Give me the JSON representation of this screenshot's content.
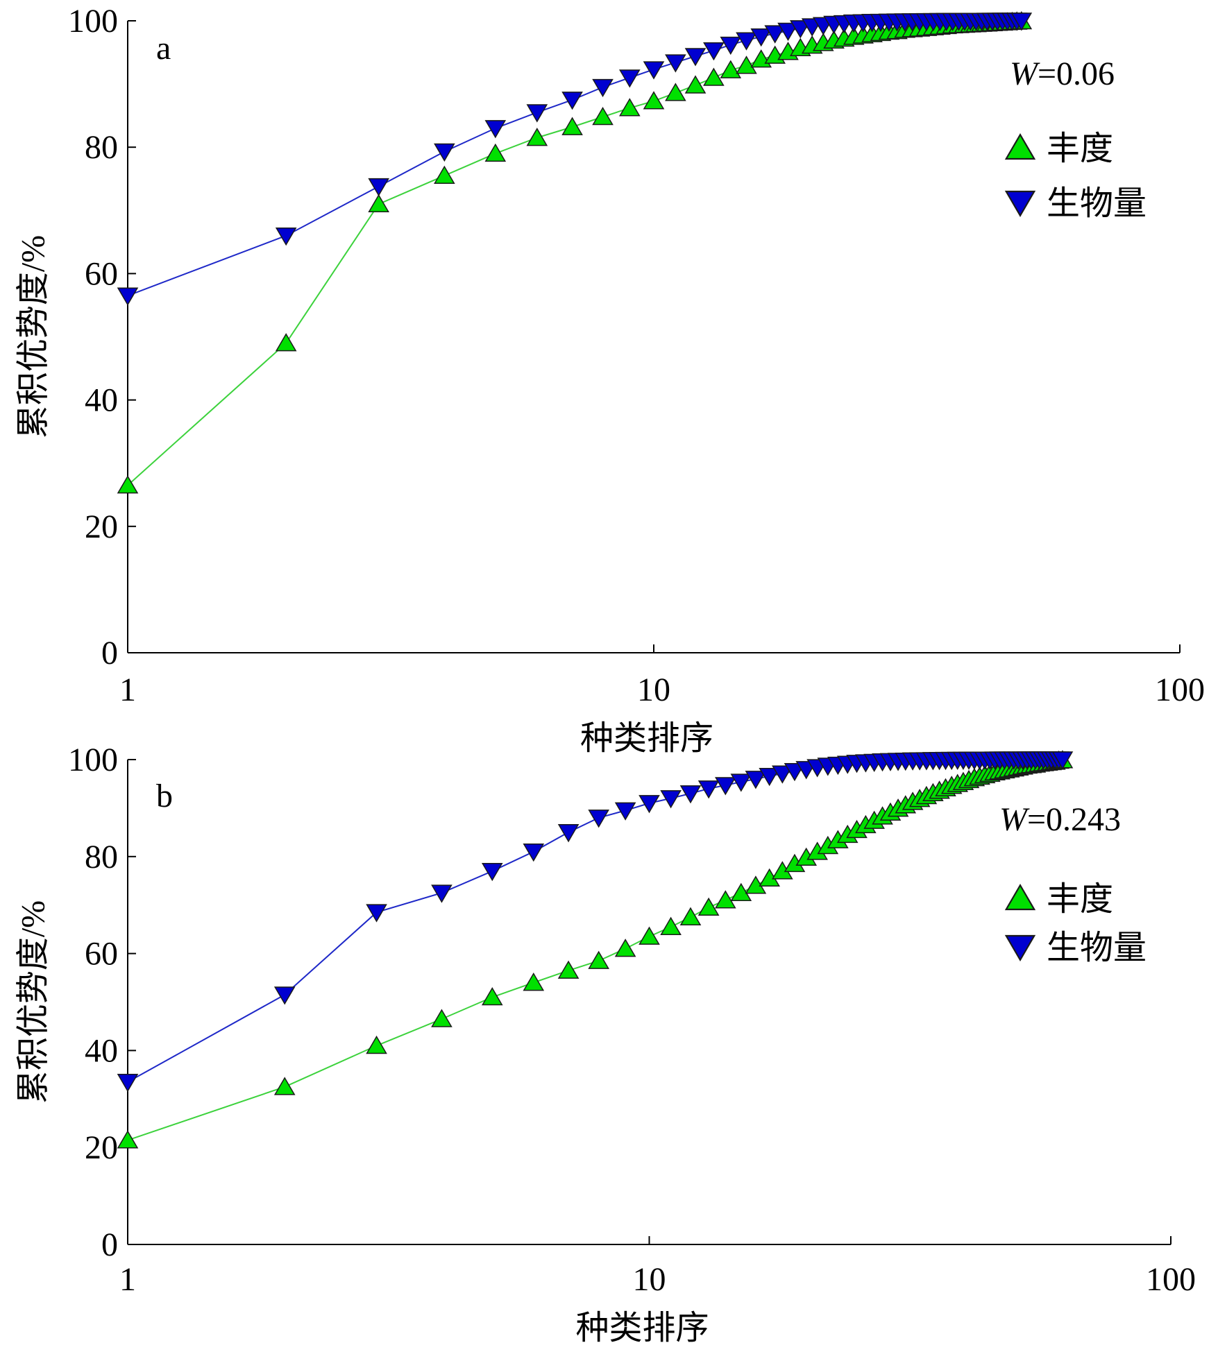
{
  "chart_data": [
    {
      "type": "line",
      "panel_label": "a",
      "annotation": {
        "prefix": "W",
        "text": "=0.06"
      },
      "xlabel": "种类排序",
      "ylabel": "累积优势度/%",
      "xscale": "log",
      "xlim": [
        1,
        100
      ],
      "ylim": [
        0,
        100
      ],
      "xticks": [
        "1",
        "10",
        "100"
      ],
      "yticks": [
        "0",
        "20",
        "40",
        "60",
        "80",
        "100"
      ],
      "legend_position": "top-right",
      "legend": [
        "丰度",
        "生物量"
      ],
      "series": [
        {
          "name": "丰度",
          "color": "#00e000",
          "line_color": "#3cd23c",
          "marker": "triangle-up",
          "x": [
            1,
            2,
            3,
            4,
            5,
            6,
            7,
            8,
            9,
            10,
            11,
            12,
            13,
            14,
            15,
            16,
            17,
            18,
            19,
            20,
            21,
            22,
            23,
            24,
            25,
            26,
            27,
            28,
            29,
            30,
            31,
            32,
            33,
            34,
            35,
            36,
            37,
            38,
            39,
            40,
            41,
            42,
            43,
            44,
            45,
            46,
            47,
            48,
            49,
            50
          ],
          "y": [
            26.5,
            49.0,
            71.0,
            75.5,
            79.0,
            81.5,
            83.2,
            84.8,
            86.2,
            87.3,
            88.6,
            89.8,
            91.0,
            92.2,
            92.9,
            93.9,
            94.5,
            95.1,
            95.7,
            96.1,
            96.5,
            96.9,
            97.2,
            97.5,
            97.7,
            97.9,
            98.1,
            98.3,
            98.4,
            98.6,
            98.7,
            98.8,
            98.9,
            99.0,
            99.1,
            99.2,
            99.3,
            99.35,
            99.4,
            99.45,
            99.5,
            99.55,
            99.6,
            99.65,
            99.7,
            99.75,
            99.8,
            99.85,
            99.9,
            99.95
          ]
        },
        {
          "name": "生物量",
          "color": "#0000d0",
          "line_color": "#1e28c8",
          "marker": "triangle-down",
          "x": [
            1,
            2,
            3,
            4,
            5,
            6,
            7,
            8,
            9,
            10,
            11,
            12,
            13,
            14,
            15,
            16,
            17,
            18,
            19,
            20,
            21,
            22,
            23,
            24,
            25,
            26,
            27,
            28,
            29,
            30,
            31,
            32,
            33,
            34,
            35,
            36,
            37,
            38,
            39,
            40,
            41,
            42,
            43,
            44,
            45,
            46,
            47,
            48,
            49,
            50
          ],
          "y": [
            56.5,
            66.0,
            73.8,
            79.3,
            83.0,
            85.5,
            87.5,
            89.5,
            91.0,
            92.3,
            93.4,
            94.4,
            95.3,
            96.2,
            96.9,
            97.5,
            98.0,
            98.4,
            98.8,
            99.1,
            99.3,
            99.5,
            99.6,
            99.7,
            99.75,
            99.8,
            99.82,
            99.85,
            99.87,
            99.88,
            99.9,
            99.91,
            99.92,
            99.93,
            99.94,
            99.95,
            99.95,
            99.96,
            99.96,
            99.97,
            99.97,
            99.97,
            99.98,
            99.98,
            99.98,
            99.99,
            99.99,
            99.99,
            100,
            100
          ]
        }
      ]
    },
    {
      "type": "line",
      "panel_label": "b",
      "annotation": {
        "prefix": "W",
        "text": "=0.243"
      },
      "xlabel": "种类排序",
      "ylabel": "累积优势度/%",
      "xscale": "log",
      "xlim": [
        1,
        100
      ],
      "ylim": [
        0,
        100
      ],
      "xticks": [
        "1",
        "10",
        "100"
      ],
      "yticks": [
        "0",
        "20",
        "40",
        "60",
        "80",
        "100"
      ],
      "legend_position": "top-right",
      "legend": [
        "丰度",
        "生物量"
      ],
      "series": [
        {
          "name": "丰度",
          "color": "#00e000",
          "line_color": "#3cd23c",
          "marker": "triangle-up",
          "x": [
            1,
            2,
            3,
            4,
            5,
            6,
            7,
            8,
            9,
            10,
            11,
            12,
            13,
            14,
            15,
            16,
            17,
            18,
            19,
            20,
            21,
            22,
            23,
            24,
            25,
            26,
            27,
            28,
            29,
            30,
            31,
            32,
            33,
            34,
            35,
            36,
            37,
            38,
            39,
            40,
            41,
            42,
            43,
            44,
            45,
            46,
            47,
            48,
            49,
            50,
            51,
            52,
            53,
            54,
            55,
            56,
            57,
            58,
            59,
            60,
            61,
            62
          ],
          "y": [
            21.5,
            32.5,
            41.0,
            46.5,
            51.0,
            54.0,
            56.5,
            58.5,
            61.0,
            63.5,
            65.5,
            67.5,
            69.5,
            71.0,
            72.5,
            74.0,
            75.5,
            77.0,
            78.5,
            79.8,
            81.0,
            82.2,
            83.4,
            84.5,
            85.5,
            86.5,
            87.4,
            88.3,
            89.1,
            89.9,
            90.6,
            91.3,
            91.9,
            92.5,
            93.1,
            93.6,
            94.1,
            94.6,
            95.0,
            95.4,
            95.8,
            96.2,
            96.5,
            96.8,
            97.1,
            97.4,
            97.6,
            97.8,
            98.0,
            98.2,
            98.4,
            98.6,
            98.8,
            98.9,
            99.0,
            99.2,
            99.3,
            99.4,
            99.5,
            99.6,
            99.8,
            99.9
          ]
        },
        {
          "name": "生物量",
          "color": "#0000d0",
          "line_color": "#1e28c8",
          "marker": "triangle-down",
          "x": [
            1,
            2,
            3,
            4,
            5,
            6,
            7,
            8,
            9,
            10,
            11,
            12,
            13,
            14,
            15,
            16,
            17,
            18,
            19,
            20,
            21,
            22,
            23,
            24,
            25,
            26,
            27,
            28,
            29,
            30,
            31,
            32,
            33,
            34,
            35,
            36,
            37,
            38,
            39,
            40,
            41,
            42,
            43,
            44,
            45,
            46,
            47,
            48,
            49,
            50,
            51,
            52,
            53,
            54,
            55,
            56,
            57,
            58,
            59,
            60,
            61,
            62
          ],
          "y": [
            33.5,
            51.5,
            68.5,
            72.5,
            77.0,
            81.0,
            85.0,
            88.0,
            89.5,
            91.0,
            92.0,
            93.0,
            94.0,
            94.7,
            95.4,
            96.0,
            96.6,
            97.1,
            97.6,
            98.0,
            98.4,
            98.7,
            98.9,
            99.1,
            99.3,
            99.4,
            99.5,
            99.6,
            99.65,
            99.7,
            99.75,
            99.8,
            99.82,
            99.84,
            99.86,
            99.88,
            99.9,
            99.91,
            99.92,
            99.93,
            99.94,
            99.95,
            99.95,
            99.96,
            99.96,
            99.97,
            99.97,
            99.97,
            99.98,
            99.98,
            99.98,
            99.98,
            99.99,
            99.99,
            99.99,
            99.99,
            99.99,
            100,
            100,
            100,
            100,
            100
          ]
        }
      ]
    }
  ]
}
